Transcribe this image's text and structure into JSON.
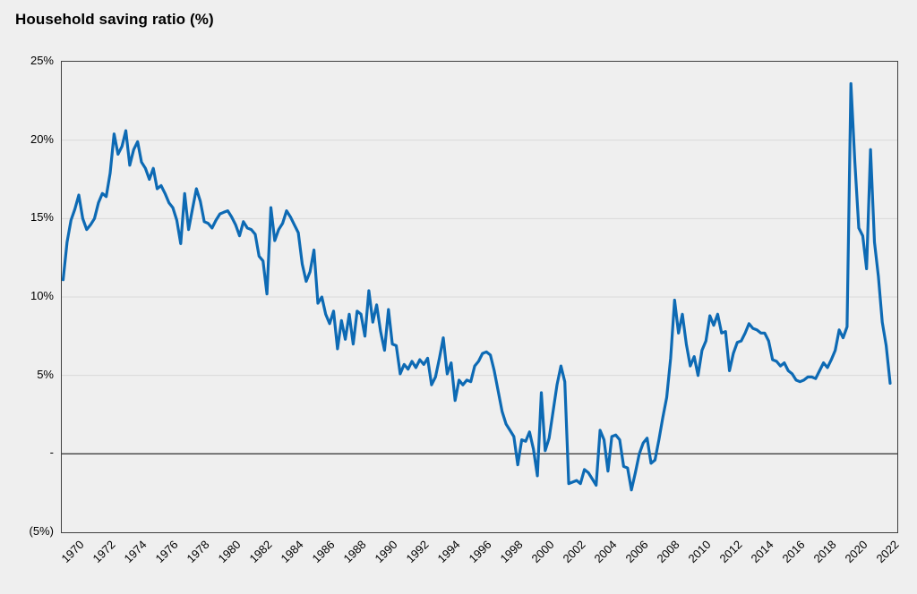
{
  "chart": {
    "title": "Household saving ratio (%)",
    "y_axis": {
      "tick_labels": [
        "25%",
        "20%",
        "15%",
        "10%",
        "5%",
        "-",
        "(5%)"
      ],
      "tick_values": [
        25,
        20,
        15,
        10,
        5,
        0,
        -5
      ]
    },
    "x_axis": {
      "tick_labels": [
        "1970",
        "1972",
        "1974",
        "1976",
        "1978",
        "1980",
        "1982",
        "1984",
        "1986",
        "1988",
        "1990",
        "1992",
        "1994",
        "1996",
        "1998",
        "2000",
        "2002",
        "2004",
        "2006",
        "2008",
        "2010",
        "2012",
        "2014",
        "2016",
        "2018",
        "2020",
        "2022"
      ],
      "tick_years": [
        1970,
        1972,
        1974,
        1976,
        1978,
        1980,
        1982,
        1984,
        1986,
        1988,
        1990,
        1992,
        1994,
        1996,
        1998,
        2000,
        2002,
        2004,
        2006,
        2008,
        2010,
        2012,
        2014,
        2016,
        2018,
        2020,
        2022
      ]
    }
  },
  "chart_data": {
    "type": "line",
    "title": "Household saving ratio (%)",
    "x_start": "1970-Q1",
    "x_end": "2022-Q4",
    "frequency": "quarterly",
    "x_step_years": 0.25,
    "unit": "percent",
    "ylim": [
      -5,
      25
    ],
    "y_gridlines": [
      20,
      15,
      10,
      5
    ],
    "zero_line": true,
    "grid": "horizontal-only",
    "legend": "none",
    "values": [
      11.1,
      13.5,
      14.9,
      15.6,
      16.5,
      15.0,
      14.3,
      14.6,
      15.0,
      16.0,
      16.6,
      16.4,
      17.9,
      20.4,
      19.1,
      19.6,
      20.6,
      18.4,
      19.4,
      19.9,
      18.6,
      18.2,
      17.5,
      18.2,
      16.9,
      17.1,
      16.6,
      16.0,
      15.7,
      14.9,
      13.4,
      16.6,
      14.3,
      15.6,
      16.9,
      16.1,
      14.8,
      14.7,
      14.4,
      14.9,
      15.3,
      15.4,
      15.5,
      15.1,
      14.6,
      13.9,
      14.8,
      14.4,
      14.3,
      14.0,
      12.6,
      12.3,
      10.2,
      15.7,
      13.6,
      14.3,
      14.7,
      15.5,
      15.1,
      14.6,
      14.1,
      12.1,
      11.0,
      11.6,
      13.0,
      9.6,
      10.0,
      8.9,
      8.3,
      9.1,
      6.7,
      8.5,
      7.3,
      8.9,
      7.0,
      9.1,
      8.9,
      7.5,
      10.4,
      8.4,
      9.5,
      7.8,
      6.6,
      9.2,
      7.0,
      6.9,
      5.1,
      5.7,
      5.4,
      5.9,
      5.5,
      6.0,
      5.7,
      6.1,
      4.4,
      4.9,
      6.1,
      7.4,
      5.1,
      5.8,
      3.4,
      4.7,
      4.4,
      4.7,
      4.6,
      5.6,
      5.9,
      6.4,
      6.5,
      6.3,
      5.3,
      4.0,
      2.7,
      1.9,
      1.5,
      1.1,
      -0.7,
      0.9,
      0.8,
      1.4,
      0.3,
      -1.4,
      3.9,
      0.2,
      1.0,
      2.7,
      4.4,
      5.6,
      4.6,
      -1.9,
      -1.8,
      -1.7,
      -1.9,
      -1.0,
      -1.2,
      -1.6,
      -2.0,
      1.5,
      0.9,
      -1.1,
      1.1,
      1.2,
      0.9,
      -0.8,
      -0.9,
      -2.3,
      -1.2,
      0.0,
      0.7,
      1.0,
      -0.6,
      -0.4,
      0.9,
      2.3,
      3.6,
      6.1,
      9.8,
      7.7,
      8.9,
      7.0,
      5.6,
      6.2,
      5.0,
      6.6,
      7.2,
      8.8,
      8.2,
      8.9,
      7.7,
      7.8,
      5.3,
      6.4,
      7.1,
      7.2,
      7.7,
      8.3,
      8.0,
      7.9,
      7.7,
      7.7,
      7.2,
      6.0,
      5.9,
      5.6,
      5.8,
      5.3,
      5.1,
      4.7,
      4.6,
      4.7,
      4.9,
      4.9,
      4.8,
      5.3,
      5.8,
      5.5,
      6.0,
      6.6,
      7.9,
      7.4,
      8.1,
      23.6,
      18.6,
      14.4,
      13.9,
      11.8,
      19.4,
      13.5,
      11.3,
      8.4,
      6.9,
      4.5
    ]
  },
  "colors": {
    "line": "#0d6ab4",
    "background": "#efefef",
    "gridline": "#d9d9d9",
    "axis": "#3f3f3f",
    "text": "#000000"
  }
}
